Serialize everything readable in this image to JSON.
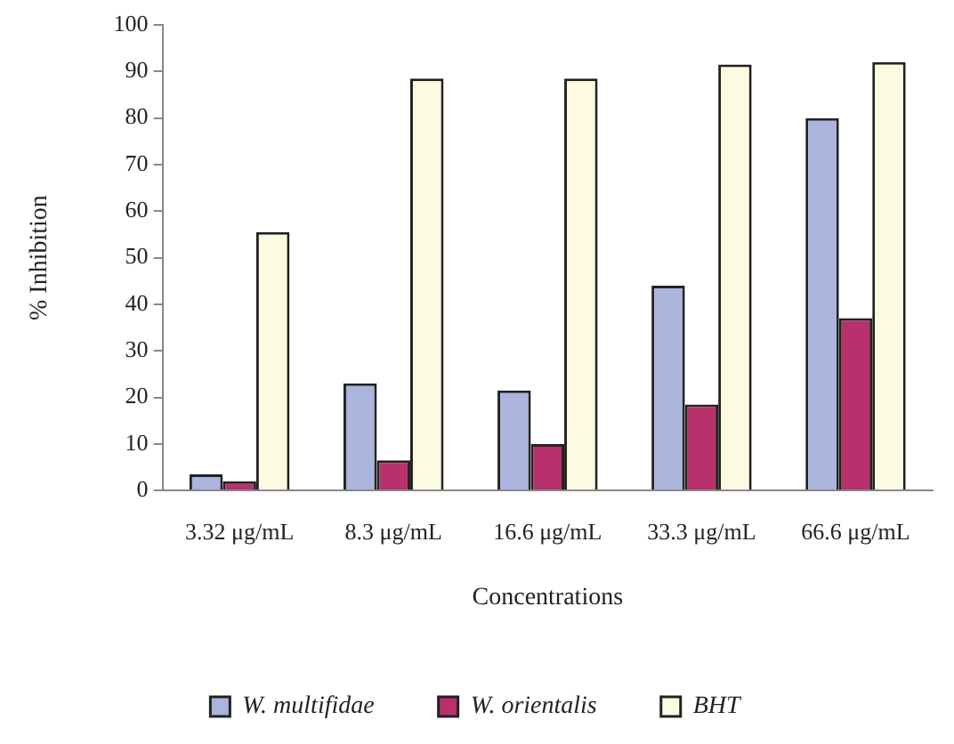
{
  "chart_data": {
    "type": "bar",
    "xlabel": "Concentrations",
    "ylabel": "% Inhibition",
    "categories": [
      "3.32 μg/mL",
      "8.3 μg/mL",
      "16.6 μg/mL",
      "33.3 μg/mL",
      "66.6 μg/mL"
    ],
    "series": [
      {
        "name": "W. multifidae",
        "color": "#aab4dc",
        "values": [
          3.5,
          23,
          21.5,
          44,
          80
        ]
      },
      {
        "name": "W. orientalis",
        "color": "#b8316c",
        "values": [
          2,
          6.5,
          10,
          18.5,
          37
        ]
      },
      {
        "name": "BHT",
        "color": "#fcfae0",
        "values": [
          55.5,
          88.5,
          88.5,
          91.5,
          92
        ]
      }
    ],
    "ylim": [
      0,
      100
    ],
    "yticks": [
      0,
      10,
      20,
      30,
      40,
      50,
      60,
      70,
      80,
      90,
      100
    ],
    "grid": false,
    "legend": "bottom"
  }
}
